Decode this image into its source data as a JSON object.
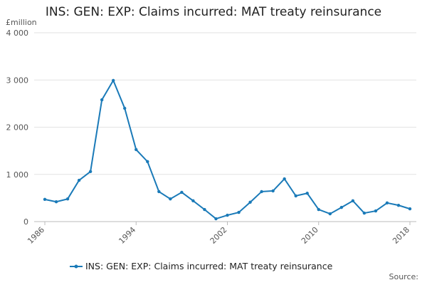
{
  "chart_data": {
    "type": "line",
    "title": "INS: GEN: EXP: Claims incurred: MAT treaty reinsurance",
    "y_unit": "£million",
    "source": "Source:",
    "x": [
      1986,
      1987,
      1988,
      1989,
      1990,
      1991,
      1992,
      1993,
      1994,
      1995,
      1996,
      1997,
      1998,
      1999,
      2000,
      2001,
      2002,
      2003,
      2004,
      2005,
      2006,
      2007,
      2008,
      2009,
      2010,
      2011,
      2012,
      2013,
      2014,
      2015,
      2016,
      2017,
      2018
    ],
    "series": [
      {
        "name": "INS: GEN: EXP: Claims incurred: MAT treaty reinsurance",
        "color": "#1a7ab8",
        "values": [
          470,
          420,
          480,
          875,
          1060,
          2580,
          2990,
          2400,
          1525,
          1270,
          635,
          480,
          620,
          440,
          255,
          60,
          135,
          195,
          410,
          635,
          650,
          905,
          545,
          600,
          255,
          165,
          300,
          440,
          180,
          225,
          395,
          345,
          270
        ]
      }
    ],
    "xlim": [
      1986,
      2018
    ],
    "xticks": [
      1986,
      1994,
      2002,
      2010,
      2018
    ],
    "ylim": [
      0,
      4000
    ],
    "yticks": [
      0,
      {
        "value": 1000,
        "label": "1 000"
      },
      {
        "value": 2000,
        "label": "2 000"
      },
      {
        "value": 3000,
        "label": "3 000"
      },
      {
        "value": 4000,
        "label": "4 000"
      }
    ],
    "grid": true
  }
}
